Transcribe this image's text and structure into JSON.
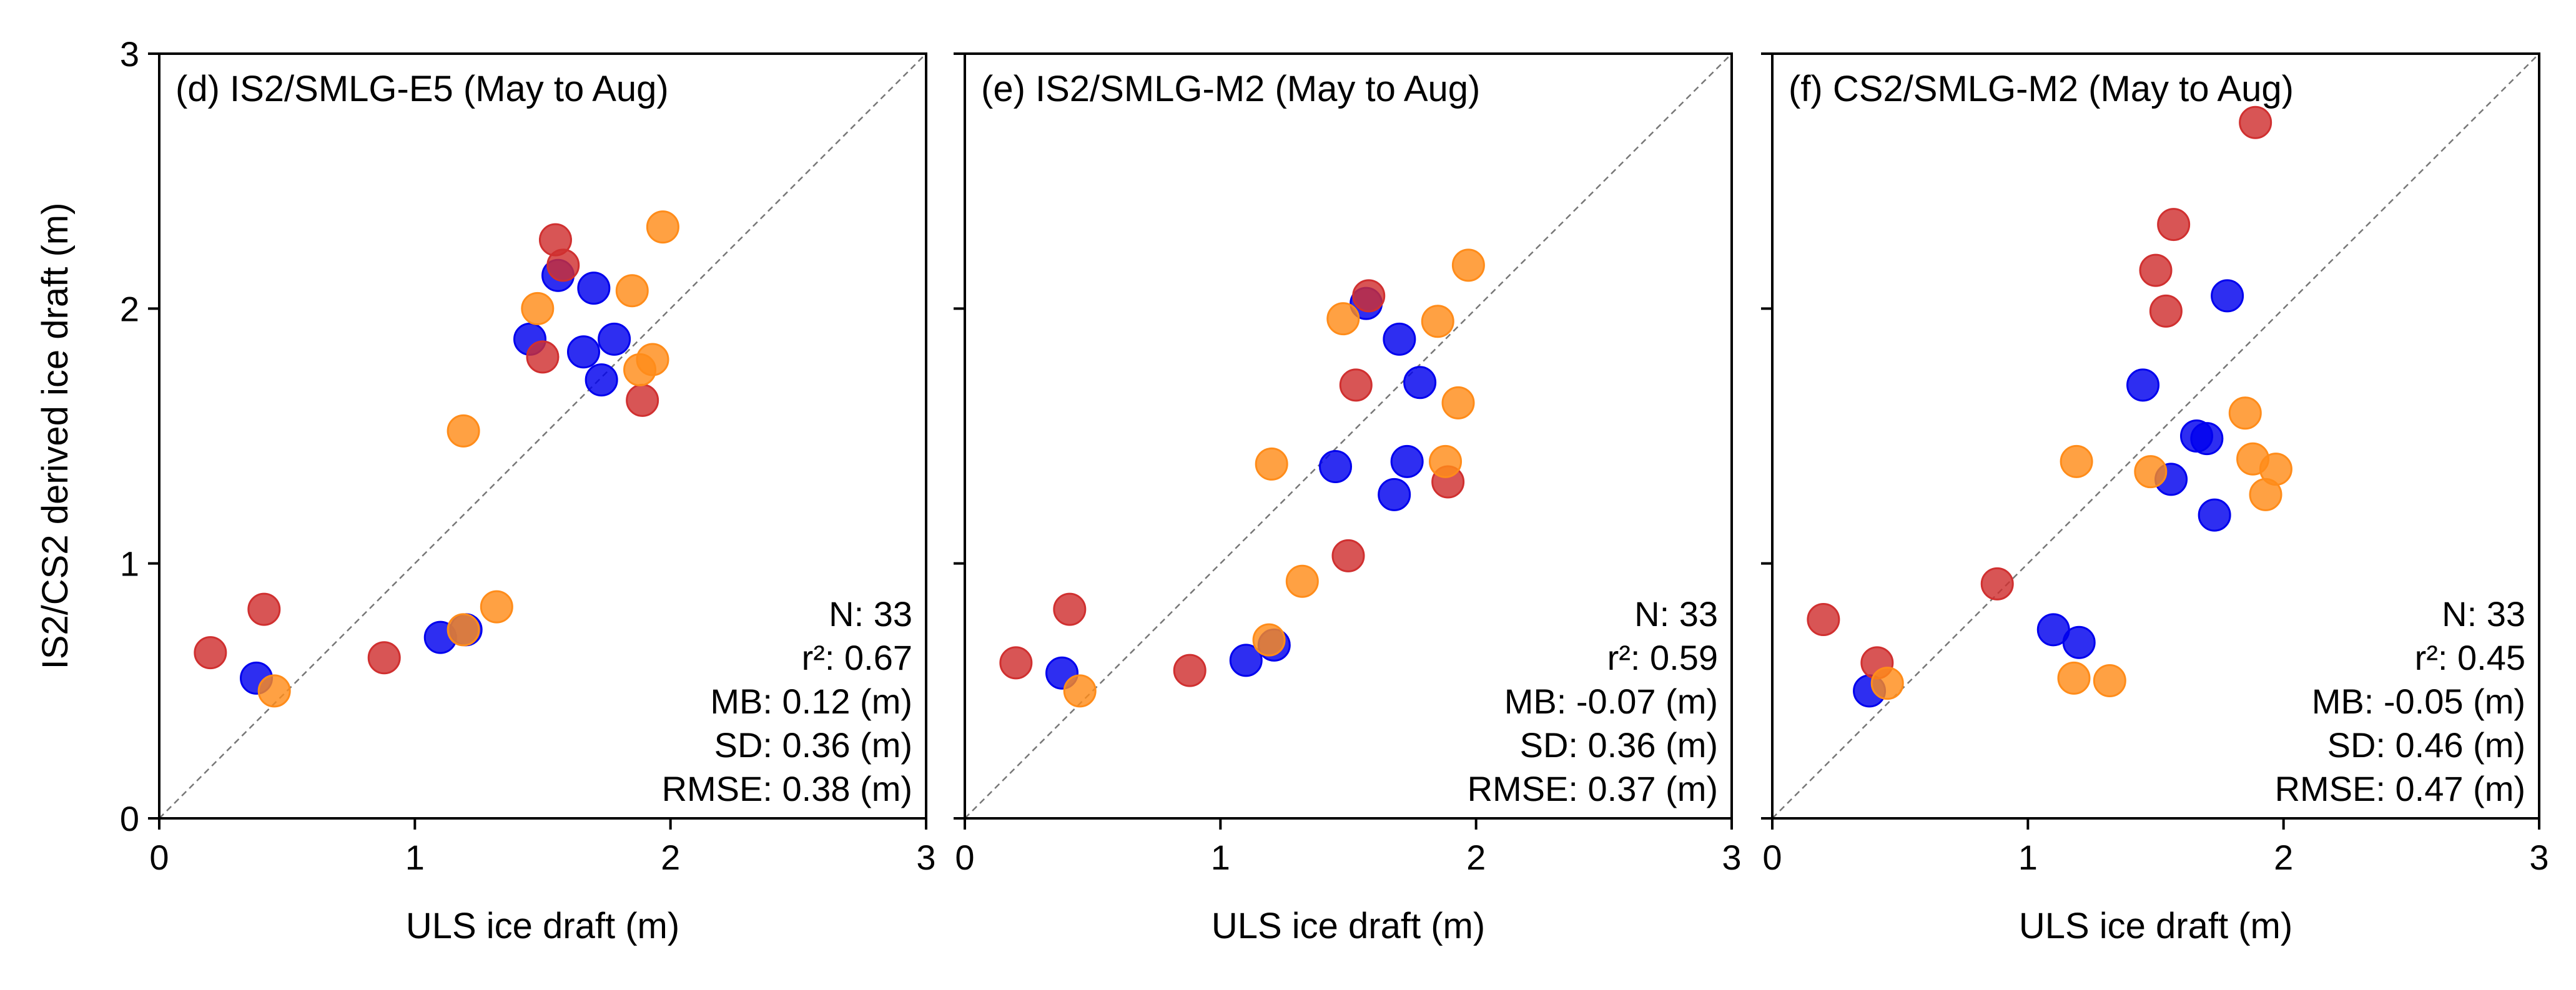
{
  "chart_data": [
    {
      "type": "scatter",
      "title": "(d) IS2/SMLG-E5 (May to Aug)",
      "xlabel": "ULS ice draft (m)",
      "ylabel": "IS2/CS2 derived ice draft (m)",
      "xlim": [
        0,
        3
      ],
      "ylim": [
        0,
        3
      ],
      "xticks": [
        "0",
        "1",
        "2",
        "3"
      ],
      "yticks": [
        "0",
        "1",
        "2",
        "3"
      ],
      "stats": [
        "N: 33",
        "r²: 0.67",
        "MB: 0.12 (m)",
        "SD: 0.36 (m)",
        "RMSE: 0.38 (m)"
      ],
      "series": [
        {
          "name": "blue",
          "color": "#0000ee",
          "x": [
            0.38,
            1.1,
            1.2,
            1.45,
            1.56,
            1.66,
            1.7,
            1.73,
            1.78
          ],
          "y": [
            0.55,
            0.71,
            0.74,
            1.88,
            2.13,
            1.83,
            2.08,
            1.72,
            1.88
          ]
        },
        {
          "name": "red",
          "color": "#d03030",
          "x": [
            0.2,
            0.41,
            0.88,
            1.5,
            1.55,
            1.58,
            1.89
          ],
          "y": [
            0.65,
            0.82,
            0.63,
            1.81,
            2.27,
            2.17,
            1.64
          ]
        },
        {
          "name": "orange",
          "color": "#ff8c1a",
          "x": [
            0.45,
            1.19,
            1.19,
            1.32,
            1.48,
            1.85,
            1.88,
            1.93,
            1.97
          ],
          "y": [
            0.5,
            0.74,
            1.52,
            0.83,
            2.0,
            2.07,
            1.76,
            1.8,
            2.32
          ]
        }
      ]
    },
    {
      "type": "scatter",
      "title": "(e) IS2/SMLG-M2 (May to Aug)",
      "xlabel": "ULS ice draft (m)",
      "ylabel": "",
      "xlim": [
        0,
        3
      ],
      "ylim": [
        0,
        3
      ],
      "xticks": [
        "0",
        "1",
        "2",
        "3"
      ],
      "yticks": [],
      "stats": [
        "N: 33",
        "r²: 0.59",
        "MB: -0.07 (m)",
        "SD: 0.36 (m)",
        "RMSE: 0.37 (m)"
      ],
      "series": [
        {
          "name": "blue",
          "color": "#0000ee",
          "x": [
            0.38,
            1.1,
            1.21,
            1.45,
            1.57,
            1.68,
            1.7,
            1.73,
            1.78
          ],
          "y": [
            0.57,
            0.62,
            0.68,
            1.38,
            2.02,
            1.27,
            1.88,
            1.4,
            1.71
          ]
        },
        {
          "name": "red",
          "color": "#d03030",
          "x": [
            0.2,
            0.41,
            0.88,
            1.5,
            1.53,
            1.58,
            1.89
          ],
          "y": [
            0.61,
            0.82,
            0.58,
            1.03,
            1.7,
            2.05,
            1.32
          ]
        },
        {
          "name": "orange",
          "color": "#ff8c1a",
          "x": [
            0.45,
            1.19,
            1.2,
            1.32,
            1.48,
            1.85,
            1.88,
            1.93,
            1.97
          ],
          "y": [
            0.5,
            0.7,
            1.39,
            0.93,
            1.96,
            1.95,
            1.4,
            1.63,
            2.17
          ]
        }
      ]
    },
    {
      "type": "scatter",
      "title": "(f) CS2/SMLG-M2 (May to Aug)",
      "xlabel": "ULS ice draft (m)",
      "ylabel": "",
      "xlim": [
        0,
        3
      ],
      "ylim": [
        0,
        3
      ],
      "xticks": [
        "0",
        "1",
        "2",
        "3"
      ],
      "yticks": [],
      "stats": [
        "N: 33",
        "r²: 0.45",
        "MB: -0.05 (m)",
        "SD: 0.46 (m)",
        "RMSE: 0.47 (m)"
      ],
      "series": [
        {
          "name": "blue",
          "color": "#0000ee",
          "x": [
            0.38,
            1.1,
            1.2,
            1.45,
            1.56,
            1.66,
            1.7,
            1.73,
            1.78
          ],
          "y": [
            0.5,
            0.74,
            0.69,
            1.7,
            1.33,
            1.5,
            1.49,
            1.19,
            2.05
          ]
        },
        {
          "name": "red",
          "color": "#d03030",
          "x": [
            0.2,
            0.41,
            0.88,
            1.5,
            1.54,
            1.57,
            1.89
          ],
          "y": [
            0.78,
            0.61,
            0.92,
            2.15,
            1.99,
            2.33,
            2.73
          ]
        },
        {
          "name": "orange",
          "color": "#ff8c1a",
          "x": [
            0.45,
            1.18,
            1.19,
            1.32,
            1.48,
            1.85,
            1.88,
            1.93,
            1.97
          ],
          "y": [
            0.53,
            0.55,
            1.4,
            0.54,
            1.36,
            1.59,
            1.41,
            1.27,
            1.37
          ]
        }
      ]
    }
  ]
}
